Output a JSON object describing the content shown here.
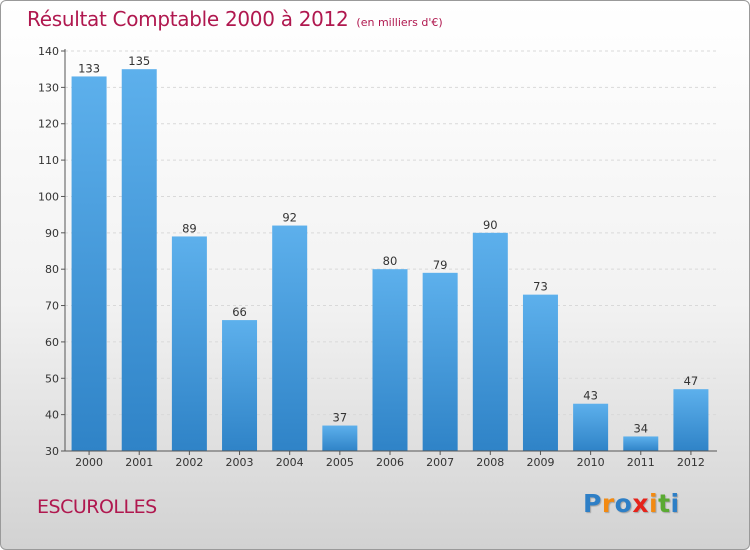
{
  "title": "Résultat Comptable 2000 à 2012",
  "unit_note": "(en milliers d'€)",
  "location": "ESCUROLLES",
  "logo": {
    "text": "Proxiti",
    "colors": [
      "#2e7fc6",
      "#f28a12",
      "#2e7fc6",
      "#e5231b",
      "#f28a12",
      "#5aaa32",
      "#2e7fc6"
    ]
  },
  "colors": {
    "accent": "#b0184f",
    "bar_light": "#5db0ec",
    "bar_dark": "#2f83c7"
  },
  "chart_data": {
    "type": "bar",
    "title": "Résultat Comptable 2000 à 2012",
    "xlabel": "",
    "ylabel": "",
    "ylim": [
      30,
      140
    ],
    "yticks": [
      30,
      40,
      50,
      60,
      70,
      80,
      90,
      100,
      110,
      120,
      130,
      140
    ],
    "categories": [
      "2000",
      "2001",
      "2002",
      "2003",
      "2004",
      "2005",
      "2006",
      "2007",
      "2008",
      "2009",
      "2010",
      "2011",
      "2012"
    ],
    "values": [
      133,
      135,
      89,
      66,
      92,
      37,
      80,
      79,
      90,
      73,
      43,
      34,
      47
    ],
    "grid": true
  }
}
